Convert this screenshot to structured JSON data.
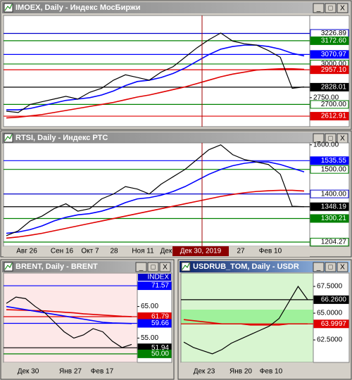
{
  "windows": [
    {
      "title": "IMOEX, Daily - Индекс МосБиржи",
      "ylim": [
        2535,
        3360
      ],
      "yticks": [
        {
          "value": 2750,
          "label": "2750.00"
        }
      ],
      "levels": [
        {
          "value": 3226.89,
          "label": "3226.89",
          "color": "#0000cc",
          "filled": false
        },
        {
          "value": 3172.6,
          "label": "3172.60",
          "color": "#008000",
          "filled": true
        },
        {
          "value": 3070.97,
          "label": "3070.97",
          "color": "#0000ff",
          "filled": true
        },
        {
          "value": 3000,
          "label": "3000.00",
          "color": "#008000",
          "filled": false
        },
        {
          "value": 2957.1,
          "label": "2957.10",
          "color": "#e00000",
          "filled": true
        },
        {
          "value": 2828.01,
          "label": "2828.01",
          "color": "#000000",
          "filled": true
        },
        {
          "value": 2700,
          "label": "2700.00",
          "color": "#008000",
          "filled": false
        },
        {
          "value": 2612.91,
          "label": "2612.91",
          "color": "#e00000",
          "filled": true
        }
      ],
      "close": [
        2650,
        2640,
        2700,
        2720,
        2740,
        2760,
        2740,
        2790,
        2820,
        2880,
        2920,
        2900,
        2880,
        2940,
        2980,
        3050,
        3120,
        3180,
        3230,
        3170,
        3150,
        3140,
        3100,
        3050,
        2820,
        2830
      ],
      "ma": [
        2660,
        2660,
        2670,
        2690,
        2710,
        2730,
        2740,
        2750,
        2770,
        2800,
        2840,
        2870,
        2880,
        2900,
        2930,
        2970,
        3020,
        3070,
        3110,
        3130,
        3140,
        3140,
        3130,
        3110,
        3080,
        3060
      ],
      "slow": [
        2600,
        2605,
        2615,
        2625,
        2640,
        2655,
        2670,
        2685,
        2700,
        2715,
        2735,
        2755,
        2770,
        2790,
        2810,
        2830,
        2855,
        2880,
        2905,
        2925,
        2940,
        2955,
        2960,
        2965,
        2965,
        2960
      ]
    },
    {
      "title": "RTSI, Daily - Индекс РТС",
      "ylim": [
        1187,
        1608
      ],
      "yticks": [
        {
          "value": 1600,
          "label": "1600.00"
        }
      ],
      "levels": [
        {
          "value": 1535.55,
          "label": "1535.55",
          "color": "#0000ff",
          "filled": true
        },
        {
          "value": 1500,
          "label": "1500.00",
          "color": "#008000",
          "filled": false
        },
        {
          "value": 1400,
          "label": "1400.00",
          "color": "#0000cc",
          "filled": false
        },
        {
          "value": 1348.19,
          "label": "1348.19",
          "color": "#000000",
          "filled": true
        },
        {
          "value": 1300.21,
          "label": "1300.21",
          "color": "#008000",
          "filled": true
        },
        {
          "value": 1204.27,
          "label": "1204.27",
          "color": "#008000",
          "filled": false
        }
      ],
      "xlabels": [
        "Авг 26",
        "Сен 16",
        "Окт 7",
        "28",
        "Ноя 11",
        "Дек",
        "Дек 30, 2019",
        "27",
        "Фев 10"
      ],
      "close": [
        1230,
        1250,
        1290,
        1310,
        1340,
        1360,
        1330,
        1340,
        1380,
        1400,
        1430,
        1420,
        1400,
        1440,
        1470,
        1500,
        1540,
        1580,
        1600,
        1560,
        1540,
        1530,
        1520,
        1480,
        1350,
        1348
      ],
      "ma": [
        1240,
        1245,
        1255,
        1270,
        1290,
        1305,
        1315,
        1320,
        1330,
        1345,
        1365,
        1380,
        1385,
        1395,
        1410,
        1430,
        1455,
        1480,
        1500,
        1515,
        1525,
        1530,
        1530,
        1520,
        1505,
        1490
      ],
      "slow": [
        1220,
        1225,
        1232,
        1240,
        1250,
        1260,
        1270,
        1280,
        1290,
        1300,
        1310,
        1320,
        1330,
        1340,
        1350,
        1360,
        1370,
        1380,
        1390,
        1398,
        1405,
        1410,
        1413,
        1415,
        1415,
        1412
      ]
    },
    {
      "title": "BRENT, Daily - BRENT",
      "ylim": [
        47.3,
        75.6
      ],
      "tag": "INDEX",
      "yticks": [
        {
          "value": 65,
          "label": "65.00"
        },
        {
          "value": 55,
          "label": "55.00"
        }
      ],
      "levels": [
        {
          "value": 71.57,
          "label": "71.57",
          "color": "#0000ff",
          "filled": true
        },
        {
          "value": 61.79,
          "label": "61.79",
          "color": "#e00000",
          "filled": true
        },
        {
          "value": 59.66,
          "label": "59.66",
          "color": "#0000ff",
          "filled": true
        },
        {
          "value": 51.94,
          "label": "51.94",
          "color": "#000000",
          "filled": true
        },
        {
          "value": 50,
          "label": "50.00",
          "color": "#008000",
          "filled": true
        }
      ],
      "xlabels": [
        "Дек 30",
        "Янв 27",
        "Фев 17"
      ],
      "close": [
        66,
        68,
        67.5,
        65,
        63,
        60,
        57,
        55,
        56,
        58,
        57,
        54,
        52,
        53
      ],
      "ma": [
        65,
        64.5,
        64,
        63.5,
        63,
        62.5,
        62,
        61.5,
        61,
        60.5,
        60,
        59.8,
        59.7,
        59.6
      ],
      "slow": [
        64,
        63.9,
        63.8,
        63.7,
        63.6,
        63.4,
        63.2,
        63,
        62.7,
        62.5,
        62.3,
        62.1,
        61.9,
        61.8
      ]
    },
    {
      "title": "USDRUB_TOM, Daily - USDR",
      "ylim": [
        60.4,
        68.75
      ],
      "yticks": [
        {
          "value": 67.5,
          "label": "67.5000"
        },
        {
          "value": 65,
          "label": "65.0000"
        },
        {
          "value": 62.5,
          "label": "62.5000"
        }
      ],
      "levels": [
        {
          "value": 66.26,
          "label": "66.2600",
          "color": "#000000",
          "filled": true
        },
        {
          "value": 63.9997,
          "label": "63.9997",
          "color": "#e00000",
          "filled": true
        }
      ],
      "xlabels": [
        "Дек 23",
        "Янв 20",
        "Фев 10"
      ],
      "close": [
        62.3,
        61.8,
        61.5,
        61.2,
        61.6,
        62.2,
        62.6,
        63.0,
        63.4,
        63.8,
        64.5,
        66.0,
        67.5,
        66.26
      ],
      "slow": [
        64.4,
        64.3,
        64.2,
        64.1,
        64.0,
        64.0,
        64.0,
        63.9,
        63.9,
        63.9,
        63.9,
        64.0,
        64.0,
        64.0
      ]
    }
  ]
}
